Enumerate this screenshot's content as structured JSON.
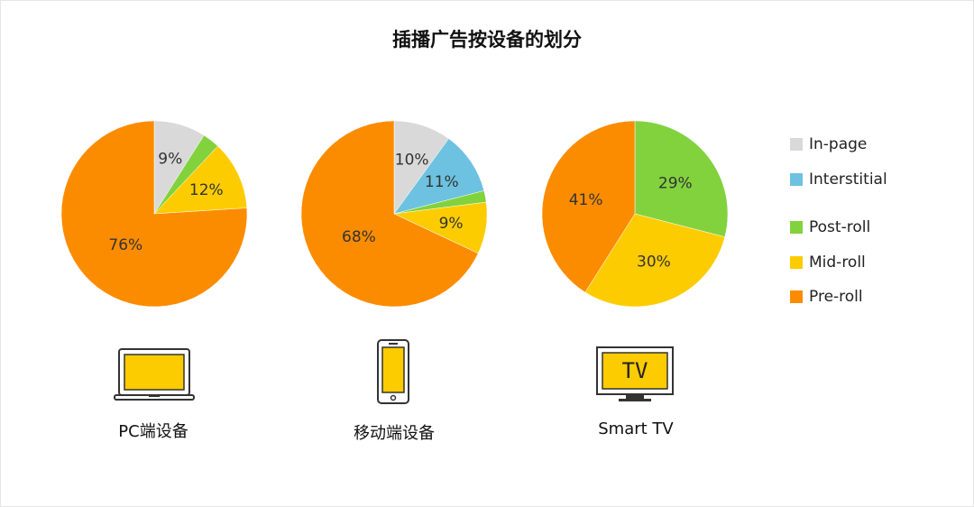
{
  "title": "插播广告按设备的划分",
  "chart_data": [
    {
      "type": "pie",
      "device": "PC端设备",
      "categories": [
        "In-page",
        "Post-roll",
        "Mid-roll",
        "Pre-roll"
      ],
      "values": [
        9,
        3,
        12,
        76
      ],
      "labels": [
        "9%",
        "",
        "12%",
        "76%"
      ]
    },
    {
      "type": "pie",
      "device": "移动端设备",
      "categories": [
        "In-page",
        "Interstitial",
        "Post-roll",
        "Mid-roll",
        "Pre-roll"
      ],
      "values": [
        10,
        11,
        2,
        9,
        68
      ],
      "labels": [
        "10%",
        "11%",
        "",
        "9%",
        "68%"
      ]
    },
    {
      "type": "pie",
      "device": "Smart TV",
      "categories": [
        "Post-roll",
        "Mid-roll",
        "Pre-roll"
      ],
      "values": [
        29,
        30,
        41
      ],
      "labels": [
        "29%",
        "30%",
        "41%"
      ]
    }
  ],
  "legend": [
    {
      "name": "In-page",
      "color": "#d9d9d9"
    },
    {
      "name": "Interstitial",
      "color": "#6cc2e0"
    },
    {
      "name": "Post-roll",
      "color": "#82d23e"
    },
    {
      "name": "Mid-roll",
      "color": "#fccc00"
    },
    {
      "name": "Pre-roll",
      "color": "#fb8c00"
    }
  ],
  "devices": [
    {
      "label": "PC端设备",
      "icon": "laptop-icon"
    },
    {
      "label": "移动端设备",
      "icon": "phone-icon"
    },
    {
      "label": "Smart TV",
      "icon": "tv-icon",
      "screen_text": "TV"
    }
  ]
}
